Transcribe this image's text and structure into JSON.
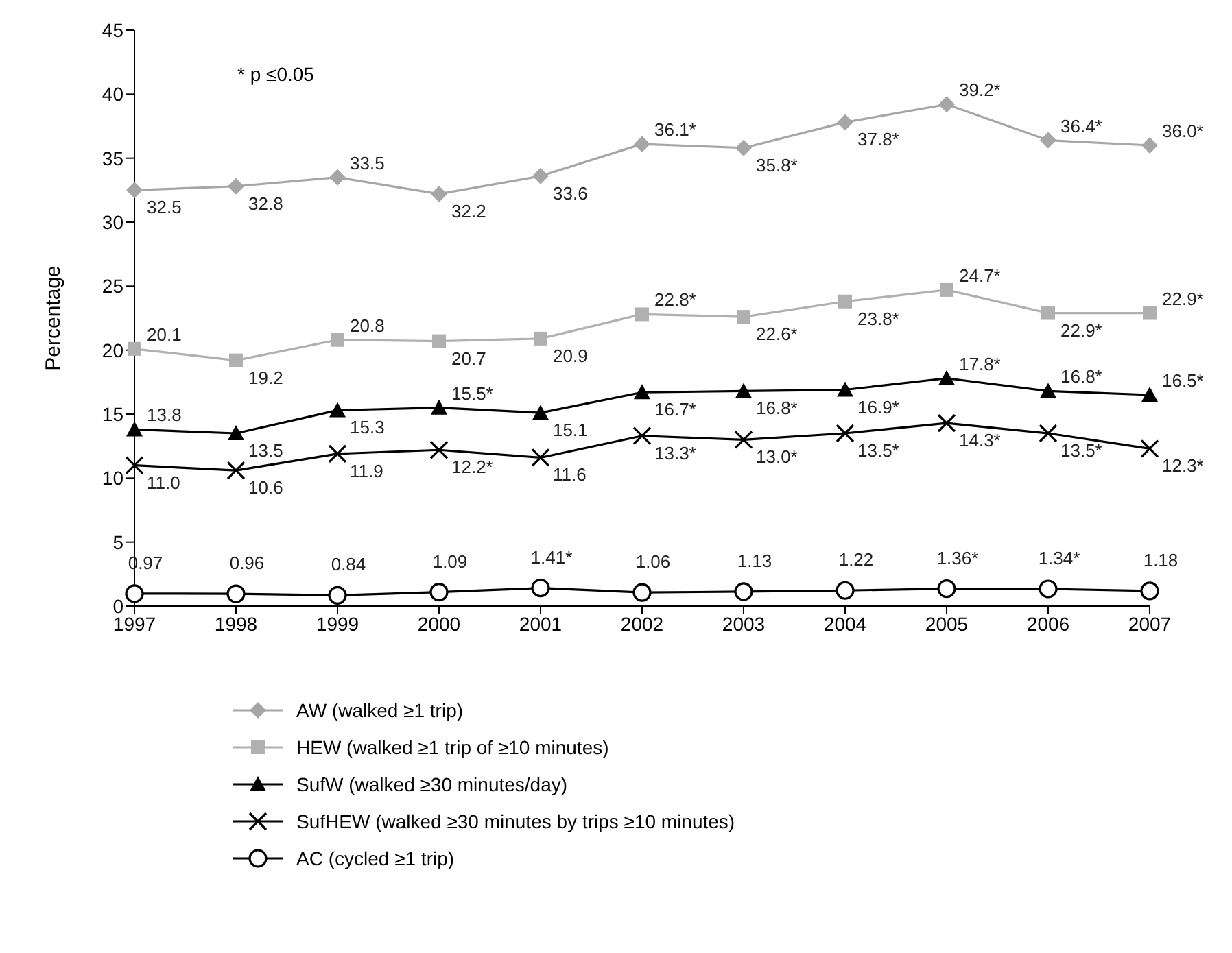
{
  "chart_data": {
    "type": "line",
    "ylabel": "Percentage",
    "annotations": [
      "* p ≤0.05"
    ],
    "categories": [
      "1997",
      "1998",
      "1999",
      "2000",
      "2001",
      "2002",
      "2003",
      "2004",
      "2005",
      "2006",
      "2007"
    ],
    "ylim": [
      0,
      45
    ],
    "yticks": [
      0,
      5,
      10,
      15,
      20,
      25,
      30,
      35,
      40,
      45
    ],
    "grid": false,
    "legend": "bottom",
    "series": [
      {
        "name": "AW (walked ≥1 trip)",
        "color": "#a6a6a6",
        "marker": "diamond",
        "values": [
          32.5,
          32.8,
          33.5,
          32.2,
          33.6,
          36.1,
          35.8,
          37.8,
          39.2,
          36.4,
          36.0
        ],
        "value_labels": [
          "32.5",
          "32.8",
          "33.5",
          "32.2",
          "33.6",
          "36.1*",
          "35.8*",
          "37.8*",
          "39.2*",
          "36.4*",
          "36.0*"
        ]
      },
      {
        "name": "HEW (walked ≥1 trip of ≥10 minutes)",
        "color": "#b0b0b0",
        "marker": "square",
        "values": [
          20.1,
          19.2,
          20.8,
          20.7,
          20.9,
          22.8,
          22.6,
          23.8,
          24.7,
          22.9,
          22.9
        ],
        "value_labels": [
          "20.1",
          "19.2",
          "20.8",
          "20.7",
          "20.9",
          "22.8*",
          "22.6*",
          "23.8*",
          "24.7*",
          "22.9*",
          "22.9*"
        ]
      },
      {
        "name": "SufW (walked ≥30 minutes/day)",
        "color": "#000000",
        "marker": "triangle",
        "values": [
          13.8,
          13.5,
          15.3,
          15.5,
          15.1,
          16.7,
          16.8,
          16.9,
          17.8,
          16.8,
          16.5
        ],
        "value_labels": [
          "13.8",
          "13.5",
          "15.3",
          "15.5*",
          "15.1",
          "16.7*",
          "16.8*",
          "16.9*",
          "17.8*",
          "16.8*",
          "16.5*"
        ]
      },
      {
        "name": "SufHEW (walked ≥30 minutes by trips ≥10 minutes)",
        "color": "#000000",
        "marker": "cross",
        "values": [
          11.0,
          10.6,
          11.9,
          12.2,
          11.6,
          13.3,
          13.0,
          13.5,
          14.3,
          13.5,
          12.3
        ],
        "value_labels": [
          "11.0",
          "10.6",
          "11.9",
          "12.2*",
          "11.6",
          "13.3*",
          "13.0*",
          "13.5*",
          "14.3*",
          "13.5*",
          "12.3*"
        ]
      },
      {
        "name": "AC (cycled ≥1 trip)",
        "color": "#000000",
        "marker": "circle",
        "values": [
          0.97,
          0.96,
          0.84,
          1.09,
          1.41,
          1.06,
          1.13,
          1.22,
          1.36,
          1.34,
          1.18
        ],
        "value_labels": [
          "0.97",
          "0.96",
          "0.84",
          "1.09",
          "1.41*",
          "1.06",
          "1.13",
          "1.22",
          "1.36*",
          "1.34*",
          "1.18"
        ]
      }
    ]
  }
}
